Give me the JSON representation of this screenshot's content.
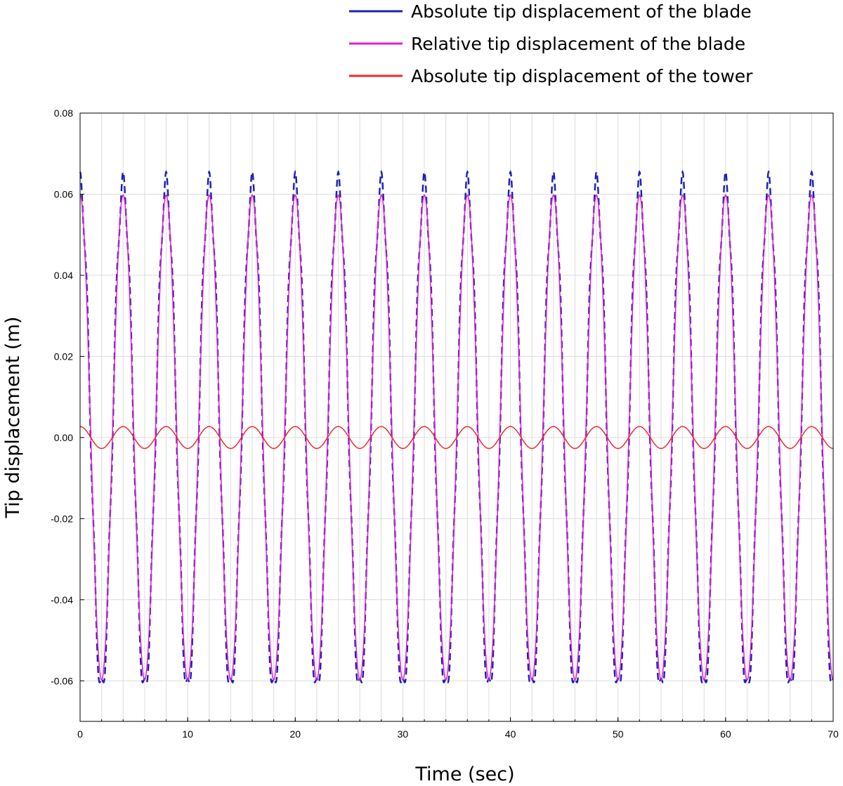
{
  "chart_data": {
    "type": "line",
    "title": "",
    "xlabel": "Time (sec)",
    "ylabel": "Tip displacement (m)",
    "xlim": [
      0,
      70
    ],
    "ylim": [
      -0.07,
      0.08
    ],
    "x_ticks": [
      0,
      10,
      20,
      30,
      40,
      50,
      60,
      70
    ],
    "x_tick_labels": [
      "0",
      "10",
      "20",
      "30",
      "40",
      "50",
      "60",
      "70"
    ],
    "y_ticks": [
      0.08,
      0.06,
      0.04,
      0.02,
      0.0,
      -0.02,
      -0.04,
      -0.06
    ],
    "y_tick_labels": [
      "0.08",
      "0.06",
      "0.04",
      "0.02",
      "0.00",
      "-0.02",
      "-0.04",
      "-0.06"
    ],
    "minor_x_grid_step": 2,
    "grid": true,
    "legend_position": "top-right",
    "period_sec": 4,
    "series": [
      {
        "name": "Absolute tip displacement of the blade",
        "color": "#1f1fb4",
        "style": "dashed",
        "amplitude": 0.0625,
        "phase": "cos",
        "ripple_amplitude": 0.003
      },
      {
        "name": "Relative tip displacement of the blade",
        "color": "#e020d0",
        "style": "solid",
        "amplitude": 0.0598,
        "phase": "cos"
      },
      {
        "name": "Absolute tip displacement of the tower",
        "color": "#ee2a2a",
        "style": "solid",
        "amplitude": 0.0027,
        "phase": "cos"
      }
    ]
  }
}
